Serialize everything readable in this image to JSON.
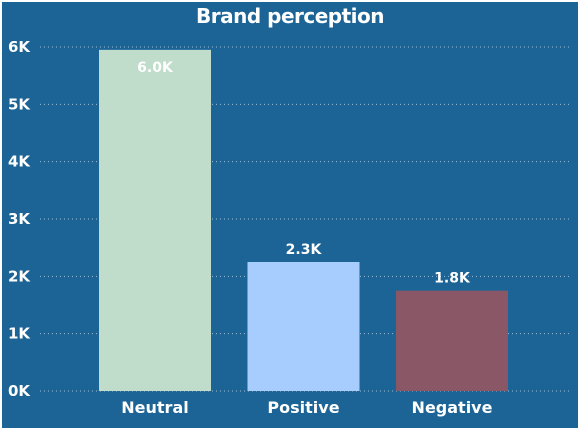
{
  "chart_data": {
    "type": "bar",
    "title": "Brand perception",
    "xlabel": "",
    "ylabel": "",
    "categories": [
      "Neutral",
      "Positive",
      "Negative"
    ],
    "values": [
      5950,
      2250,
      1750
    ],
    "data_labels": [
      "6.0K",
      "2.3K",
      "1.8K"
    ],
    "bar_colors": [
      "#c0dccb",
      "#a6cdfd",
      "#8a5766"
    ],
    "ylim": [
      0,
      6000
    ],
    "yticks": [
      0,
      1000,
      2000,
      3000,
      4000,
      5000,
      6000
    ],
    "ytick_labels": [
      "0K",
      "1K",
      "2K",
      "3K",
      "4K",
      "5K",
      "6K"
    ],
    "grid": true,
    "legend": "none"
  },
  "colors": {
    "background": "#1d6496",
    "text": "#ffffff",
    "gridline": "#9fbbd3"
  }
}
